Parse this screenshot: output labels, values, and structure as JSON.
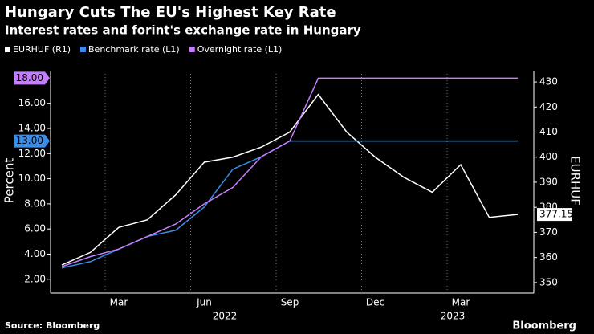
{
  "chart_data": {
    "type": "line",
    "title": "Hungary Cuts The EU's Highest Key Rate",
    "subtitle": "Interest rates and forint's exchange rate in Hungary",
    "ylabel": "Percent",
    "y2label": "EURHUF",
    "source": "Source: Bloomberg",
    "brand": "Bloomberg",
    "x": [
      "2022-01",
      "2022-02",
      "2022-03",
      "2022-04",
      "2022-05",
      "2022-06",
      "2022-07",
      "2022-08",
      "2022-09",
      "2022-10",
      "2022-11",
      "2022-12",
      "2023-01",
      "2023-02",
      "2023-03",
      "2023-04",
      "2023-05"
    ],
    "series": [
      {
        "name": "EURHUF (R1)",
        "color": "#ffffff",
        "axis": "y2",
        "values": [
          357,
          362,
          372,
          375,
          385,
          398,
          400,
          404,
          410,
          425,
          410,
          400,
          392,
          386,
          397,
          376,
          377.15
        ],
        "value_labels": [
          null,
          null,
          null,
          null,
          null,
          null,
          null,
          null,
          null,
          null,
          null,
          null,
          null,
          null,
          null,
          null,
          "377.15"
        ]
      },
      {
        "name": "Benchmark rate (L1)",
        "color": "#3b8ee8",
        "values": [
          2.9,
          3.4,
          4.4,
          5.4,
          5.9,
          7.75,
          10.75,
          11.75,
          13,
          13,
          13,
          13,
          13,
          13,
          13,
          13,
          13
        ],
        "value_labels": [
          null,
          null,
          null,
          null,
          null,
          null,
          null,
          null,
          null,
          null,
          null,
          null,
          null,
          null,
          null,
          null,
          "13.00"
        ]
      },
      {
        "name": "Overnight rate (L1)",
        "color": "#c77dff",
        "values": [
          3,
          3.8,
          4.4,
          5.4,
          6.4,
          8,
          9.3,
          11.75,
          13,
          18,
          18,
          18,
          18,
          18,
          18,
          18,
          18
        ],
        "value_labels": [
          null,
          null,
          null,
          null,
          null,
          null,
          null,
          null,
          null,
          null,
          null,
          null,
          null,
          null,
          null,
          null,
          "18.00"
        ]
      }
    ],
    "ylim": [
      0.9,
      18.6
    ],
    "yticks": [
      {
        "value": 2,
        "label": "2.00"
      },
      {
        "value": 4,
        "label": "4.00"
      },
      {
        "value": 6,
        "label": "6.00"
      },
      {
        "value": 8,
        "label": "8.00"
      },
      {
        "value": 10,
        "label": "10.00"
      },
      {
        "value": 12,
        "label": "12.00"
      },
      {
        "value": 14,
        "label": "14.00"
      },
      {
        "value": 16,
        "label": "16.00"
      }
    ],
    "y2lim": [
      345.8,
      434.5
    ],
    "y2ticks": [
      350,
      360,
      370,
      380,
      390,
      400,
      410,
      420,
      430
    ],
    "xticks": [
      {
        "value": "2022-03",
        "label": "Mar"
      },
      {
        "value": "2022-06",
        "label": "Jun"
      },
      {
        "value": "2022-09",
        "label": "Sep"
      },
      {
        "value": "2022-12",
        "label": "Dec"
      },
      {
        "value": "2023-03",
        "label": "Mar"
      }
    ],
    "year_labels": [
      {
        "value": "2022-07",
        "label": "2022"
      },
      {
        "value": "2023-03",
        "label": "2023"
      }
    ],
    "grid": true
  }
}
